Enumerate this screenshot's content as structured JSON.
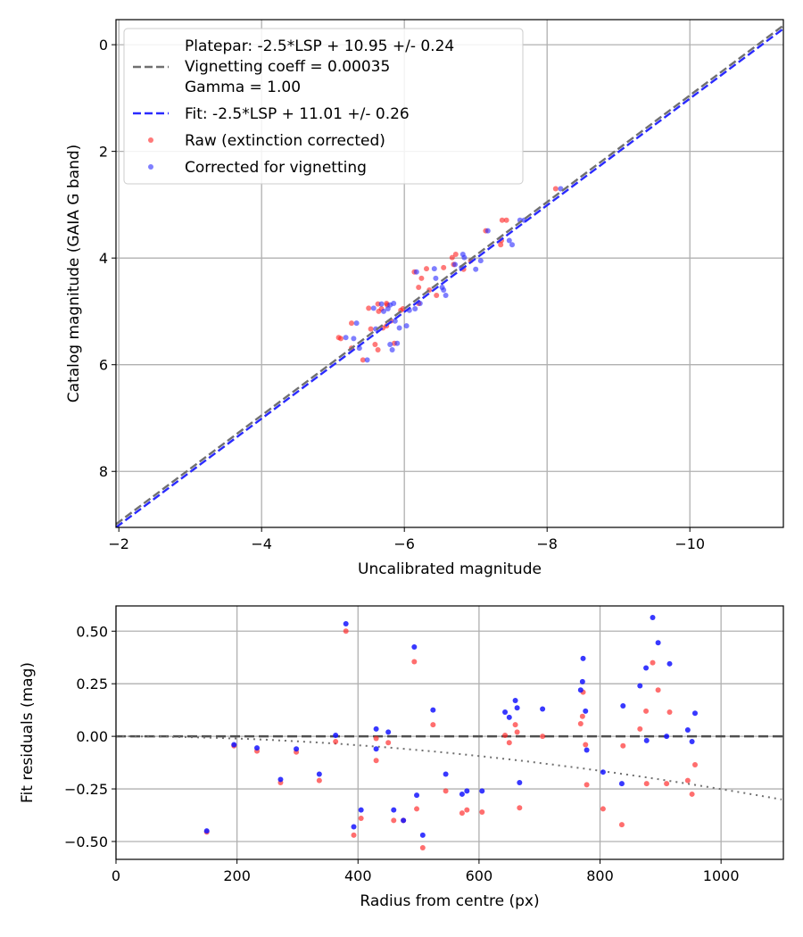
{
  "chart_data": [
    {
      "type": "scatter",
      "title": "",
      "xlabel": "Uncalibrated magnitude",
      "ylabel": "Catalog magnitude (GAIA G band)",
      "xlim": [
        -1.96,
        -11.31
      ],
      "ylim": [
        9.05,
        -0.47
      ],
      "x_inverted": true,
      "y_inverted": true,
      "grid": true,
      "xticks": [
        -2,
        -4,
        -6,
        -8,
        -10
      ],
      "xtick_labels": [
        "−2",
        "−4",
        "−6",
        "−8",
        "−10"
      ],
      "yticks": [
        0,
        2,
        4,
        6,
        8
      ],
      "ytick_labels": [
        "0",
        "2",
        "4",
        "6",
        "8"
      ],
      "legend_position": "top-left",
      "lines": [
        {
          "name": "platepar",
          "label_lines": [
            "Platepar: -2.5*LSP + 10.95 +/- 0.24",
            "Vignetting coeff = 0.00035",
            "Gamma = 1.00"
          ],
          "slope": 1,
          "intercept": 10.95,
          "color": "#707070",
          "style": "dashed"
        },
        {
          "name": "fit",
          "label_lines": [
            "Fit: -2.5*LSP + 11.01 +/- 0.26"
          ],
          "slope": 1,
          "intercept": 11.01,
          "color": "#2a2aff",
          "style": "dashed"
        }
      ],
      "series": [
        {
          "name": "raw",
          "label": "Raw (extinction corrected)",
          "color": "#ff2020",
          "x": [
            -7.37,
            -7.43,
            -7.14,
            -7.36,
            -7.35,
            -6.72,
            -6.67,
            -6.93,
            -6.69,
            -6.83,
            -6.55,
            -6.31,
            -6.14,
            -6.24,
            -6.2,
            -6.2,
            -5.5,
            -5.63,
            -5.75,
            -5.68,
            -5.76,
            -5.64,
            -5.95,
            -5.98,
            -5.81,
            -5.75,
            -5.26,
            -5.7,
            -5.53,
            -5.08,
            -5.11,
            -5.26,
            -5.59,
            -5.63,
            -5.86,
            -5.42,
            -8.12,
            -6.35,
            -6.45
          ],
          "y": [
            3.29,
            3.29,
            3.49,
            3.67,
            3.75,
            3.93,
            3.99,
            4.05,
            4.12,
            4.21,
            4.18,
            4.2,
            4.26,
            4.38,
            4.55,
            4.85,
            4.94,
            4.86,
            4.85,
            4.95,
            4.88,
            5.0,
            4.98,
            4.95,
            5.18,
            5.27,
            5.22,
            5.31,
            5.33,
            5.49,
            5.51,
            5.69,
            5.62,
            5.72,
            5.6,
            5.91,
            2.7,
            4.6,
            4.7
          ]
        },
        {
          "name": "corrected",
          "label": "Corrected for vignetting",
          "color": "#2a2aff",
          "x": [
            -7.62,
            -7.68,
            -7.17,
            -7.47,
            -7.51,
            -6.82,
            -6.84,
            -7.07,
            -6.71,
            -7.0,
            -6.8,
            -6.42,
            -6.17,
            -6.44,
            -6.53,
            -6.22,
            -5.57,
            -5.68,
            -5.85,
            -5.77,
            -5.8,
            -5.71,
            -6.07,
            -6.15,
            -5.87,
            -6.03,
            -5.33,
            -5.93,
            -5.6,
            -5.18,
            -5.29,
            -5.37,
            -5.8,
            -5.83,
            -5.9,
            -5.48,
            -8.19,
            -6.55,
            -6.58
          ],
          "y": [
            3.29,
            3.29,
            3.49,
            3.67,
            3.75,
            3.93,
            3.99,
            4.05,
            4.12,
            4.21,
            4.18,
            4.2,
            4.26,
            4.38,
            4.55,
            4.85,
            4.94,
            4.86,
            4.85,
            4.95,
            4.88,
            5.0,
            4.98,
            4.95,
            5.18,
            5.27,
            5.22,
            5.31,
            5.33,
            5.49,
            5.51,
            5.69,
            5.62,
            5.72,
            5.6,
            5.91,
            2.7,
            4.6,
            4.7
          ]
        }
      ]
    },
    {
      "type": "scatter",
      "title": "",
      "xlabel": "Radius from centre (px)",
      "ylabel": "Fit residuals (mag)",
      "xlim": [
        0,
        1103
      ],
      "ylim": [
        -0.585,
        0.62
      ],
      "grid": true,
      "xticks": [
        0,
        200,
        400,
        600,
        800,
        1000
      ],
      "xtick_labels": [
        "0",
        "200",
        "400",
        "600",
        "800",
        "1000"
      ],
      "yticks": [
        -0.5,
        -0.25,
        0,
        0.25,
        0.5
      ],
      "ytick_labels": [
        "−0.50",
        "−0.25",
        "0.00",
        "0.25",
        "0.50"
      ],
      "zero_line": {
        "value": 0,
        "color": "#505050",
        "style": "dashed"
      },
      "vignetting_curve": {
        "coeff": 0.00035,
        "color": "#707070",
        "style": "dotted"
      },
      "series": [
        {
          "name": "raw",
          "color": "#ff2020",
          "x": [
            150,
            195,
            233,
            272,
            298,
            336,
            363,
            380,
            393,
            405,
            430,
            430,
            450,
            459,
            475,
            493,
            497,
            507,
            524,
            545,
            572,
            580,
            605,
            643,
            650,
            660,
            663,
            667,
            705,
            768,
            771,
            772,
            776,
            778,
            805,
            836,
            838,
            866,
            876,
            877,
            887,
            896,
            910,
            915,
            945,
            952,
            957
          ],
          "y": [
            -0.455,
            -0.045,
            -0.07,
            -0.22,
            -0.075,
            -0.21,
            -0.025,
            0.5,
            -0.47,
            -0.39,
            -0.115,
            -0.01,
            -0.03,
            -0.4,
            -0.4,
            0.355,
            -0.345,
            -0.53,
            0.055,
            -0.26,
            -0.365,
            -0.35,
            -0.36,
            0.005,
            -0.03,
            0.055,
            0.02,
            -0.34,
            0.0,
            0.06,
            0.095,
            0.21,
            -0.04,
            -0.23,
            -0.345,
            -0.42,
            -0.045,
            0.035,
            0.12,
            -0.225,
            0.35,
            0.22,
            -0.225,
            0.115,
            -0.21,
            -0.275,
            -0.135
          ]
        },
        {
          "name": "corrected",
          "color": "#1515ff",
          "x": [
            150,
            195,
            233,
            272,
            298,
            336,
            363,
            380,
            393,
            405,
            430,
            430,
            450,
            459,
            475,
            493,
            497,
            507,
            524,
            545,
            572,
            580,
            605,
            643,
            650,
            660,
            663,
            667,
            705,
            768,
            771,
            772,
            776,
            778,
            805,
            836,
            838,
            866,
            876,
            877,
            887,
            896,
            910,
            915,
            945,
            952,
            957
          ],
          "y": [
            -0.45,
            -0.04,
            -0.055,
            -0.205,
            -0.06,
            -0.18,
            0.005,
            0.535,
            -0.43,
            -0.35,
            -0.06,
            0.035,
            0.02,
            -0.35,
            -0.4,
            0.425,
            -0.28,
            -0.47,
            0.125,
            -0.18,
            -0.275,
            -0.26,
            -0.26,
            0.115,
            0.09,
            0.17,
            0.135,
            -0.22,
            0.13,
            0.22,
            0.26,
            0.37,
            0.12,
            -0.065,
            -0.17,
            -0.225,
            0.145,
            0.24,
            0.325,
            -0.02,
            0.565,
            0.445,
            0.0,
            0.345,
            0.03,
            -0.025,
            0.11
          ]
        }
      ]
    }
  ]
}
